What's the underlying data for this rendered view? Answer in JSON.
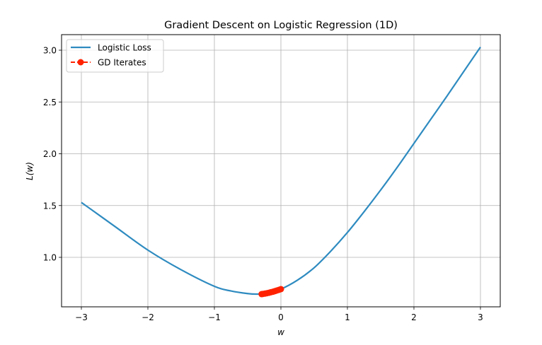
{
  "chart_data": {
    "type": "line",
    "title": "Gradient Descent on Logistic Regression (1D)",
    "xlabel": "w",
    "ylabel": "L(w)",
    "xlim": [
      -3.3,
      3.3
    ],
    "ylim": [
      0.6,
      3.15
    ],
    "grid": true,
    "legend_position": "upper left",
    "x_ticks": [
      -3,
      -2,
      -1,
      0,
      1,
      2,
      3
    ],
    "x_tick_labels": [
      "−3",
      "−2",
      "−1",
      "0",
      "1",
      "2",
      "3"
    ],
    "y_ticks": [
      1.0,
      1.5,
      2.0,
      2.5,
      3.0
    ],
    "y_tick_labels": [
      "1.0",
      "1.5",
      "2.0",
      "2.5",
      "3.0"
    ],
    "series": [
      {
        "name": "Logistic Loss",
        "style": "solid line",
        "color": "#2e8bc0",
        "x": [
          -3,
          -2.5,
          -2,
          -1.5,
          -1,
          -0.75,
          -0.5,
          -0.35,
          -0.2,
          0,
          0.25,
          0.5,
          0.75,
          1,
          1.25,
          1.5,
          1.75,
          2,
          2.25,
          2.5,
          2.75,
          3
        ],
        "y": [
          1.53,
          1.3,
          1.07,
          0.88,
          0.72,
          0.675,
          0.65,
          0.645,
          0.655,
          0.693,
          0.78,
          0.9,
          1.06,
          1.24,
          1.44,
          1.65,
          1.87,
          2.1,
          2.33,
          2.56,
          2.795,
          3.03
        ]
      },
      {
        "name": "GD Iterates",
        "style": "dashed line with circle markers",
        "color": "#ff2200",
        "x": [
          0,
          -0.03,
          -0.06,
          -0.09,
          -0.12,
          -0.15,
          -0.18,
          -0.21,
          -0.24,
          -0.27,
          -0.29
        ],
        "y": [
          0.693,
          0.686,
          0.68,
          0.674,
          0.668,
          0.663,
          0.658,
          0.654,
          0.65,
          0.647,
          0.645
        ]
      }
    ]
  },
  "legend": {
    "items": [
      {
        "label": "Logistic Loss"
      },
      {
        "label": "GD Iterates"
      }
    ]
  }
}
